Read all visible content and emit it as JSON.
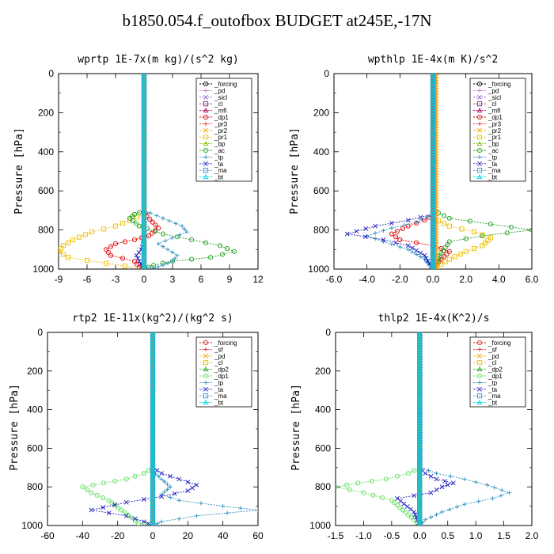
{
  "title": "b1850.054.f_outofbox  BUDGET at245E,-17N",
  "chart_data": [
    {
      "type": "line",
      "title": "wprtp   1E-7x(m kg)/(s^2 kg)",
      "ylabel": "Pressure [hPa]",
      "xlim": [
        -9,
        12
      ],
      "ylim": [
        1000,
        0
      ],
      "xticks": [
        -9,
        -6,
        -3,
        0,
        3,
        6,
        9,
        12
      ],
      "xtick_labels": [
        "-9",
        "-6",
        "-3",
        "0",
        "3",
        "6",
        "9",
        "12"
      ],
      "yticks": [
        0,
        200,
        400,
        600,
        800,
        1000
      ],
      "legend_position": "top-right",
      "series": [
        {
          "name": "_forcing",
          "color": "#000000",
          "x": [
            0,
            0
          ],
          "y": [
            0,
            1000
          ]
        },
        {
          "name": "_pd",
          "color": "#d070d0",
          "x": [
            0,
            0
          ],
          "y": [
            0,
            1000
          ]
        },
        {
          "name": "_sicl",
          "color": "#8a60c8",
          "x": [
            0,
            0
          ],
          "y": [
            0,
            1000
          ]
        },
        {
          "name": "_cl",
          "color": "#8b1a8b",
          "x": [
            0,
            0
          ],
          "y": [
            0,
            1000
          ]
        },
        {
          "name": "_mfl",
          "color": "#b00060",
          "x": [
            0,
            0
          ],
          "y": [
            0,
            1000
          ]
        },
        {
          "name": "_dp1",
          "color": "#e00000",
          "x": [
            0,
            0,
            0.3,
            1.5,
            0.5,
            -1,
            -3,
            -4,
            -3.5,
            -1,
            -0.5,
            0
          ],
          "y": [
            0,
            700,
            730,
            790,
            830,
            850,
            870,
            900,
            930,
            960,
            990,
            1000
          ]
        },
        {
          "name": "_pr3",
          "color": "#e83030",
          "x": [
            0,
            0
          ],
          "y": [
            0,
            1000
          ]
        },
        {
          "name": "_pr2",
          "color": "#f0a000",
          "x": [
            0,
            0
          ],
          "y": [
            0,
            1000
          ]
        },
        {
          "name": "_pr1",
          "color": "#f0c000",
          "x": [
            0,
            0,
            -1.5,
            -3,
            -5.5,
            -7.5,
            -8.5,
            -9,
            -8,
            -4,
            0
          ],
          "y": [
            0,
            720,
            750,
            780,
            810,
            850,
            880,
            910,
            940,
            970,
            1000
          ]
        },
        {
          "name": "_bp",
          "color": "#80c000",
          "x": [
            0,
            0
          ],
          "y": [
            0,
            1000
          ]
        },
        {
          "name": "_ac",
          "color": "#20a020",
          "x": [
            0,
            0,
            -1,
            -1.5,
            -0.5,
            2,
            5,
            8,
            9.5,
            7,
            3,
            1,
            0
          ],
          "y": [
            0,
            700,
            720,
            740,
            780,
            820,
            850,
            880,
            910,
            940,
            960,
            980,
            1000
          ]
        },
        {
          "name": "_tp",
          "color": "#3090c0",
          "x": [
            0,
            0,
            2,
            4,
            4.5,
            3,
            1.5,
            2.5,
            3.5,
            3,
            2,
            1,
            0
          ],
          "y": [
            0,
            700,
            740,
            780,
            810,
            840,
            870,
            900,
            930,
            960,
            980,
            995,
            1000
          ]
        },
        {
          "name": "_ta",
          "color": "#2020c0",
          "x": [
            0,
            0,
            -0.3,
            -0.8,
            -0.5,
            0
          ],
          "y": [
            0,
            860,
            900,
            930,
            960,
            1000
          ]
        },
        {
          "name": "_ma",
          "color": "#4090d0",
          "x": [
            0,
            0
          ],
          "y": [
            0,
            1000
          ]
        },
        {
          "name": "_bt",
          "color": "#00d0e0",
          "x": [
            0,
            0
          ],
          "y": [
            0,
            1000
          ]
        }
      ]
    },
    {
      "type": "line",
      "title": "wpthlp   1E-4x(m K)/s^2",
      "ylabel": "Pressure [hPa]",
      "xlim": [
        -6,
        6
      ],
      "ylim": [
        1000,
        0
      ],
      "xticks": [
        -6,
        -4,
        -2,
        0,
        2,
        4,
        6
      ],
      "xtick_labels": [
        "-6.0",
        "-4.0",
        "-2.0",
        "0.0",
        "2.0",
        "4.0",
        "6.0"
      ],
      "yticks": [
        0,
        200,
        400,
        600,
        800,
        1000
      ],
      "legend_position": "top-right",
      "series": [
        {
          "name": "_forcing",
          "color": "#000000",
          "x": [
            0,
            0
          ],
          "y": [
            0,
            1000
          ]
        },
        {
          "name": "_pd",
          "color": "#d070d0",
          "x": [
            0,
            0
          ],
          "y": [
            0,
            1000
          ]
        },
        {
          "name": "_sicl",
          "color": "#8a60c8",
          "x": [
            0.1,
            0.1
          ],
          "y": [
            0,
            1000
          ]
        },
        {
          "name": "_cl",
          "color": "#8b1a8b",
          "x": [
            0,
            0
          ],
          "y": [
            0,
            1000
          ]
        },
        {
          "name": "_mfl",
          "color": "#b00060",
          "x": [
            0,
            0
          ],
          "y": [
            0,
            1000
          ]
        },
        {
          "name": "_dp1",
          "color": "#e00000",
          "x": [
            0,
            0,
            -0.5,
            -1.5,
            -2.5,
            -2,
            0,
            1,
            0.5,
            0
          ],
          "y": [
            0,
            720,
            750,
            780,
            820,
            850,
            880,
            910,
            950,
            1000
          ]
        },
        {
          "name": "_pr3",
          "color": "#e83030",
          "x": [
            0,
            0
          ],
          "y": [
            0,
            1000
          ]
        },
        {
          "name": "_pr2",
          "color": "#f0a000",
          "x": [
            0.2,
            0.2
          ],
          "y": [
            0,
            1000
          ]
        },
        {
          "name": "_pr1",
          "color": "#f0c000",
          "x": [
            0,
            0,
            1,
            2.5,
            3.5,
            3,
            2,
            1,
            0
          ],
          "y": [
            0,
            740,
            780,
            810,
            840,
            880,
            910,
            950,
            1000
          ]
        },
        {
          "name": "_bp",
          "color": "#80c000",
          "x": [
            0,
            0
          ],
          "y": [
            0,
            1000
          ]
        },
        {
          "name": "_ac",
          "color": "#20a020",
          "x": [
            0,
            0,
            1,
            3.5,
            6,
            3,
            1,
            0.5,
            0
          ],
          "y": [
            0,
            700,
            740,
            770,
            800,
            830,
            860,
            920,
            1000
          ]
        },
        {
          "name": "_tp",
          "color": "#3090c0",
          "x": [
            0,
            0,
            -1,
            -2.5,
            -4,
            -3,
            -1.5,
            -0.5,
            0
          ],
          "y": [
            0,
            720,
            760,
            790,
            830,
            860,
            900,
            950,
            1000
          ]
        },
        {
          "name": "_ta",
          "color": "#2020c0",
          "x": [
            0,
            0,
            -1.5,
            -3.5,
            -5.2,
            -3,
            -1.5,
            -0.5,
            0
          ],
          "y": [
            0,
            720,
            750,
            780,
            820,
            850,
            880,
            930,
            1000
          ]
        },
        {
          "name": "_ma",
          "color": "#4090d0",
          "x": [
            0,
            0
          ],
          "y": [
            0,
            1000
          ]
        },
        {
          "name": "_bt",
          "color": "#00d0e0",
          "x": [
            0,
            0
          ],
          "y": [
            0,
            1000
          ]
        }
      ]
    },
    {
      "type": "line",
      "title": "rtp2   1E-11x(kg^2)/(kg^2 s)",
      "ylabel": "Pressure [hPa]",
      "xlim": [
        -60,
        60
      ],
      "ylim": [
        1000,
        0
      ],
      "xticks": [
        -60,
        -40,
        -20,
        0,
        20,
        40,
        60
      ],
      "xtick_labels": [
        "-60",
        "-40",
        "-20",
        "0",
        "20",
        "40",
        "60"
      ],
      "yticks": [
        0,
        200,
        400,
        600,
        800,
        1000
      ],
      "legend_position": "top-right",
      "series": [
        {
          "name": "_forcing",
          "color": "#d02020",
          "x": [
            0,
            0
          ],
          "y": [
            0,
            1000
          ]
        },
        {
          "name": "_sf",
          "color": "#e03030",
          "x": [
            0,
            0
          ],
          "y": [
            0,
            1000
          ]
        },
        {
          "name": "_pd",
          "color": "#f0a000",
          "x": [
            0,
            0
          ],
          "y": [
            0,
            1000
          ]
        },
        {
          "name": "_cl",
          "color": "#f0c000",
          "x": [
            0,
            0
          ],
          "y": [
            0,
            1000
          ]
        },
        {
          "name": "_dp2",
          "color": "#20a020",
          "x": [
            0,
            0
          ],
          "y": [
            0,
            1000
          ]
        },
        {
          "name": "_dp1",
          "color": "#60e060",
          "x": [
            0,
            0,
            -5,
            -15,
            -28,
            -40,
            -35,
            -25,
            -18,
            -12,
            -8,
            0
          ],
          "y": [
            0,
            700,
            730,
            760,
            780,
            800,
            830,
            870,
            920,
            960,
            990,
            1000
          ]
        },
        {
          "name": "_tp",
          "color": "#3090c0",
          "x": [
            0,
            0,
            5,
            10,
            5,
            15,
            40,
            60,
            25,
            5,
            0
          ],
          "y": [
            0,
            720,
            760,
            800,
            840,
            870,
            900,
            920,
            950,
            980,
            1000
          ]
        },
        {
          "name": "_ta",
          "color": "#2020c0",
          "x": [
            0,
            0,
            5,
            15,
            25,
            20,
            5,
            -15,
            -35,
            -15,
            -5,
            0
          ],
          "y": [
            0,
            700,
            730,
            760,
            790,
            820,
            850,
            880,
            920,
            950,
            980,
            1000
          ]
        },
        {
          "name": "_ma",
          "color": "#4090d0",
          "x": [
            0,
            0
          ],
          "y": [
            0,
            1000
          ]
        },
        {
          "name": "_bt",
          "color": "#00d0e0",
          "x": [
            0,
            0
          ],
          "y": [
            0,
            1000
          ]
        }
      ]
    },
    {
      "type": "line",
      "title": "thlp2   1E-4x(K^2)/s",
      "ylabel": "Pressure [hPa]",
      "xlim": [
        -1.5,
        2.0
      ],
      "ylim": [
        1000,
        0
      ],
      "xticks": [
        -1.5,
        -1.0,
        -0.5,
        0.0,
        0.5,
        1.0,
        1.5,
        2.0
      ],
      "xtick_labels": [
        "-1.5",
        "-1.0",
        "-0.5",
        "0.0",
        "0.5",
        "1.0",
        "1.5",
        "2.0"
      ],
      "yticks": [
        0,
        200,
        400,
        600,
        800,
        1000
      ],
      "legend_position": "top-right",
      "series": [
        {
          "name": "_forcing",
          "color": "#d02020",
          "x": [
            0,
            0
          ],
          "y": [
            0,
            1000
          ]
        },
        {
          "name": "_sf",
          "color": "#e03030",
          "x": [
            0,
            0
          ],
          "y": [
            0,
            1000
          ]
        },
        {
          "name": "_pd",
          "color": "#f0a000",
          "x": [
            0,
            0
          ],
          "y": [
            0,
            1000
          ]
        },
        {
          "name": "_cl",
          "color": "#f0c000",
          "x": [
            0,
            0
          ],
          "y": [
            0,
            1000
          ]
        },
        {
          "name": "_dp2",
          "color": "#20a020",
          "x": [
            0,
            0
          ],
          "y": [
            0,
            1000
          ]
        },
        {
          "name": "_dp1",
          "color": "#60e060",
          "x": [
            0,
            0,
            -0.2,
            -0.6,
            -1.1,
            -1.5,
            -1.0,
            -0.5,
            -0.3,
            -0.1,
            0
          ],
          "y": [
            0,
            700,
            730,
            760,
            780,
            800,
            830,
            870,
            920,
            970,
            1000
          ]
        },
        {
          "name": "_tp",
          "color": "#3090c0",
          "x": [
            0.02,
            0.02,
            0.3,
            0.8,
            1.2,
            1.6,
            1.3,
            0.8,
            0.4,
            0.1,
            0
          ],
          "y": [
            0,
            700,
            730,
            760,
            790,
            830,
            860,
            890,
            930,
            970,
            1000
          ]
        },
        {
          "name": "_ta",
          "color": "#2020c0",
          "x": [
            0,
            0,
            0.1,
            0.3,
            0.6,
            0.4,
            0.2,
            -0.4,
            -0.1,
            0
          ],
          "y": [
            0,
            700,
            730,
            760,
            780,
            800,
            830,
            860,
            930,
            1000
          ]
        },
        {
          "name": "_ma",
          "color": "#4090d0",
          "x": [
            0,
            0
          ],
          "y": [
            0,
            1000
          ]
        },
        {
          "name": "_bt",
          "color": "#00d0e0",
          "x": [
            0,
            0
          ],
          "y": [
            0,
            1000
          ]
        }
      ]
    }
  ]
}
